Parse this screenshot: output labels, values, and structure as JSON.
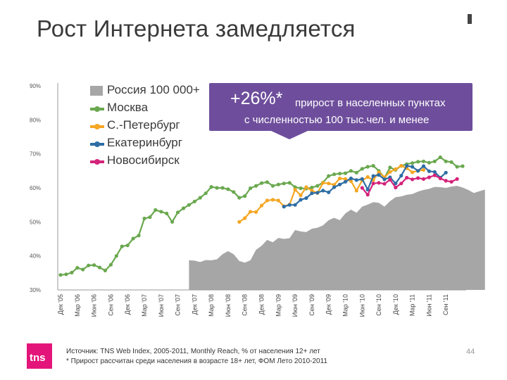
{
  "slide": {
    "title": "Рост Интернета замедляется",
    "callout_big": "+26%*",
    "callout_line1": "прирост в населенных пунктах",
    "callout_line2": "с численностью 100 тыс.чел. и менее",
    "logo": "tns",
    "source_line": "Источник: TNS Web Index, 2005-2011, Monthly Reach, % от населения 12+ лет",
    "note_line": "* Прирост рассчитан среди населения в возрасте 18+ лет, ФОМ Лето 2010-2011",
    "page_number": "44"
  },
  "colors": {
    "russia": "#a6a6a6",
    "moscow": "#6aa84f",
    "spb": "#f5a623",
    "ekb": "#2e6da4",
    "nsk": "#d4237a",
    "callout": "#6e4e9c"
  },
  "chart_data": {
    "type": "line",
    "ylim": [
      30,
      90
    ],
    "y_ticks": [
      "90%",
      "80%",
      "70%",
      "60%",
      "50%",
      "40%",
      "30%"
    ],
    "y_tick_values": [
      90,
      80,
      70,
      60,
      50,
      40,
      30
    ],
    "x_tick_labels": [
      "Дек '05",
      "Мар '06",
      "Июн '06",
      "Сен '06",
      "Дек '06",
      "Мар '07",
      "Июн '07",
      "Сен '07",
      "Дек '07",
      "Мар '08",
      "Июн '08",
      "Сен '08",
      "Дек '08",
      "Мар '09",
      "Июн '09",
      "Сен '09",
      "Дек '09",
      "Мар '10",
      "Июн '10",
      "Сен '10",
      "Дек '10",
      "Мар '11",
      "Июн '11",
      "Сен '11"
    ],
    "grid": false,
    "legend_position": "top-left",
    "series": [
      {
        "name": "Россия 100 000+",
        "kind": "area",
        "color_key": "russia",
        "start_index": 23,
        "values": [
          38.7,
          38.6,
          38.2,
          38.8,
          38.7,
          39.0,
          40.5,
          41.4,
          40.5,
          38.5,
          38.0,
          38.7,
          41.8,
          43.0,
          44.7,
          44.0,
          45.3,
          45.0,
          45.2,
          47.6,
          47.2,
          47.0,
          48.0,
          48.3,
          49.0,
          50.5,
          51.2,
          50.5,
          52.5,
          53.6,
          52.7,
          54.5,
          55.1,
          55.8,
          55.6,
          54.5,
          56.1,
          57.3,
          57.5,
          58.0,
          58.2,
          58.9,
          59.4,
          59.7,
          60.3,
          60.2,
          60.0,
          60.4,
          60.6,
          60.1,
          59.4,
          58.5,
          59.0,
          59.5
        ]
      },
      {
        "name": "Москва",
        "kind": "line",
        "color_key": "moscow",
        "start_index": 0,
        "values": [
          34.4,
          34.6,
          35.1,
          36.5,
          36.0,
          37.2,
          37.3,
          36.6,
          35.7,
          37.4,
          40.0,
          42.8,
          43.1,
          45.1,
          46.0,
          51.0,
          51.4,
          53.5,
          53.0,
          52.5,
          50.0,
          52.8,
          54.0,
          55.0,
          56.0,
          57.1,
          58.4,
          60.3,
          60.0,
          60.0,
          59.6,
          58.8,
          57.1,
          57.6,
          59.9,
          60.6,
          61.4,
          61.7,
          60.6,
          61.0,
          61.3,
          61.5,
          60.2,
          59.9,
          59.8,
          60.1,
          60.6,
          61.6,
          63.5,
          64.0,
          64.2,
          64.3,
          65.0,
          64.5,
          65.6,
          66.2,
          66.5,
          65.0,
          63.0,
          66.0,
          65.3,
          66.5,
          67.0,
          67.3,
          67.7,
          67.8,
          67.4,
          67.8,
          69.0,
          67.8,
          67.6,
          66.2,
          66.4
        ]
      },
      {
        "name": "С.-Петербург",
        "kind": "line",
        "color_key": "spb",
        "start_index": 32,
        "values": [
          50.0,
          51.1,
          53.0,
          52.9,
          54.8,
          56.3,
          56.5,
          56.3,
          54.6,
          55.1,
          59.5,
          57.8,
          60.2,
          59.2,
          58.5,
          61.5,
          61.3,
          60.9,
          62.8,
          62.6,
          62.0,
          59.2,
          62.2,
          63.2,
          62.3,
          64.6,
          63.1,
          64.7,
          65.5,
          66.5,
          65.8,
          64.6,
          65.0,
          65.3
        ]
      },
      {
        "name": "Екатеринбург",
        "kind": "line",
        "color_key": "ekb",
        "start_index": 40,
        "values": [
          54.5,
          55.0,
          55.0,
          56.5,
          57.0,
          58.4,
          58.6,
          59.2,
          58.7,
          60.2,
          61.0,
          61.8,
          62.8,
          62.3,
          62.6,
          59.5,
          63.5,
          63.8,
          62.5,
          63.1,
          61.3,
          63.6,
          66.5,
          66.2,
          65.0,
          66.4,
          64.9,
          64.7,
          63.0,
          64.5
        ]
      },
      {
        "name": "Новосибирск",
        "kind": "line",
        "color_key": "nsk",
        "start_index": 54,
        "values": [
          60.0,
          58.0,
          61.3,
          61.5,
          61.2,
          62.4,
          60.1,
          61.3,
          63.0,
          62.5,
          62.9,
          62.6,
          63.1,
          63.7,
          62.8,
          62.1,
          61.8,
          62.6
        ]
      }
    ]
  }
}
